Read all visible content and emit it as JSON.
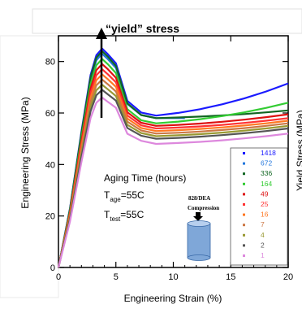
{
  "chart_data": {
    "type": "line",
    "title": "“yield” stress",
    "xlabel": "Engineering Strain (%)",
    "ylabel": "Engineering Stress (MPa)",
    "ylabel_right": "Yield Stress (MPa)",
    "xlim": [
      0,
      20
    ],
    "ylim": [
      0,
      90
    ],
    "x_ticks": [
      "0",
      "5",
      "10",
      "15",
      "20"
    ],
    "y_ticks": [
      "0",
      "20",
      "40",
      "60",
      "80"
    ],
    "annotations": {
      "aging_label": "Aging Time (hours)",
      "t_age_main": "T",
      "t_age_sub": "age",
      "t_age_value": "=55C",
      "t_test_main": "T",
      "t_test_sub": "test",
      "t_test_value": "=55C",
      "inset_title": "828/DEA",
      "inset_label": "Compression"
    },
    "legend": {
      "placement": "right"
    },
    "series": [
      {
        "name": "1418",
        "color": "#1a1aff",
        "peak": 85,
        "min": 59,
        "end": 71.5,
        "end_x": 20
      },
      {
        "name": "672",
        "color": "#2277dd",
        "peak": 83,
        "min": 58,
        "end": 58,
        "end_x": 11
      },
      {
        "name": "336",
        "color": "#116622",
        "peak": 84,
        "min": 58,
        "end": 61,
        "end_x": 20
      },
      {
        "name": "164",
        "color": "#33cc33",
        "peak": 81,
        "min": 56,
        "end": 64,
        "end_x": 20
      },
      {
        "name": "49",
        "color": "#dd1111",
        "peak": 79,
        "min": 55,
        "end": 59.5,
        "end_x": 20
      },
      {
        "name": "25",
        "color": "#ff3333",
        "peak": 77,
        "min": 54,
        "end": 58,
        "end_x": 20
      },
      {
        "name": "16",
        "color": "#ff7722",
        "peak": 75,
        "min": 53,
        "end": 57,
        "end_x": 20
      },
      {
        "name": "7",
        "color": "#cc7744",
        "peak": 73,
        "min": 52,
        "end": 56,
        "end_x": 20
      },
      {
        "name": "4",
        "color": "#999933",
        "peak": 71,
        "min": 51,
        "end": 55,
        "end_x": 20
      },
      {
        "name": "2",
        "color": "#555555",
        "peak": 69,
        "min": 50,
        "end": 54,
        "end_x": 20
      },
      {
        "name": "1",
        "color": "#dd88dd",
        "peak": 66,
        "min": 48,
        "end": 52,
        "end_x": 20
      }
    ]
  }
}
